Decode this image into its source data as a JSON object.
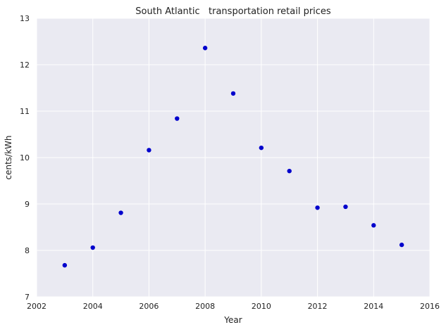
{
  "chart_data": {
    "type": "scatter",
    "title": "South Atlantic   transportation retail prices",
    "xlabel": "Year",
    "ylabel": "cents/kWh",
    "xlim": [
      2002,
      2016
    ],
    "ylim": [
      7,
      13
    ],
    "xticks": [
      2002,
      2004,
      2006,
      2008,
      2010,
      2012,
      2014,
      2016
    ],
    "yticks": [
      7,
      8,
      9,
      10,
      11,
      12,
      13
    ],
    "grid": true,
    "legend": "none",
    "background_color": "#eaeaf2",
    "grid_color": "#ffffff",
    "point_color": "#0000cc",
    "points": [
      {
        "x": 2003,
        "y": 7.68
      },
      {
        "x": 2004,
        "y": 8.06
      },
      {
        "x": 2005,
        "y": 8.81
      },
      {
        "x": 2006,
        "y": 10.16
      },
      {
        "x": 2007,
        "y": 10.84
      },
      {
        "x": 2008,
        "y": 12.36
      },
      {
        "x": 2009,
        "y": 11.38
      },
      {
        "x": 2010,
        "y": 10.21
      },
      {
        "x": 2011,
        "y": 9.71
      },
      {
        "x": 2012,
        "y": 8.92
      },
      {
        "x": 2013,
        "y": 8.94
      },
      {
        "x": 2014,
        "y": 8.54
      },
      {
        "x": 2015,
        "y": 8.12
      }
    ]
  }
}
